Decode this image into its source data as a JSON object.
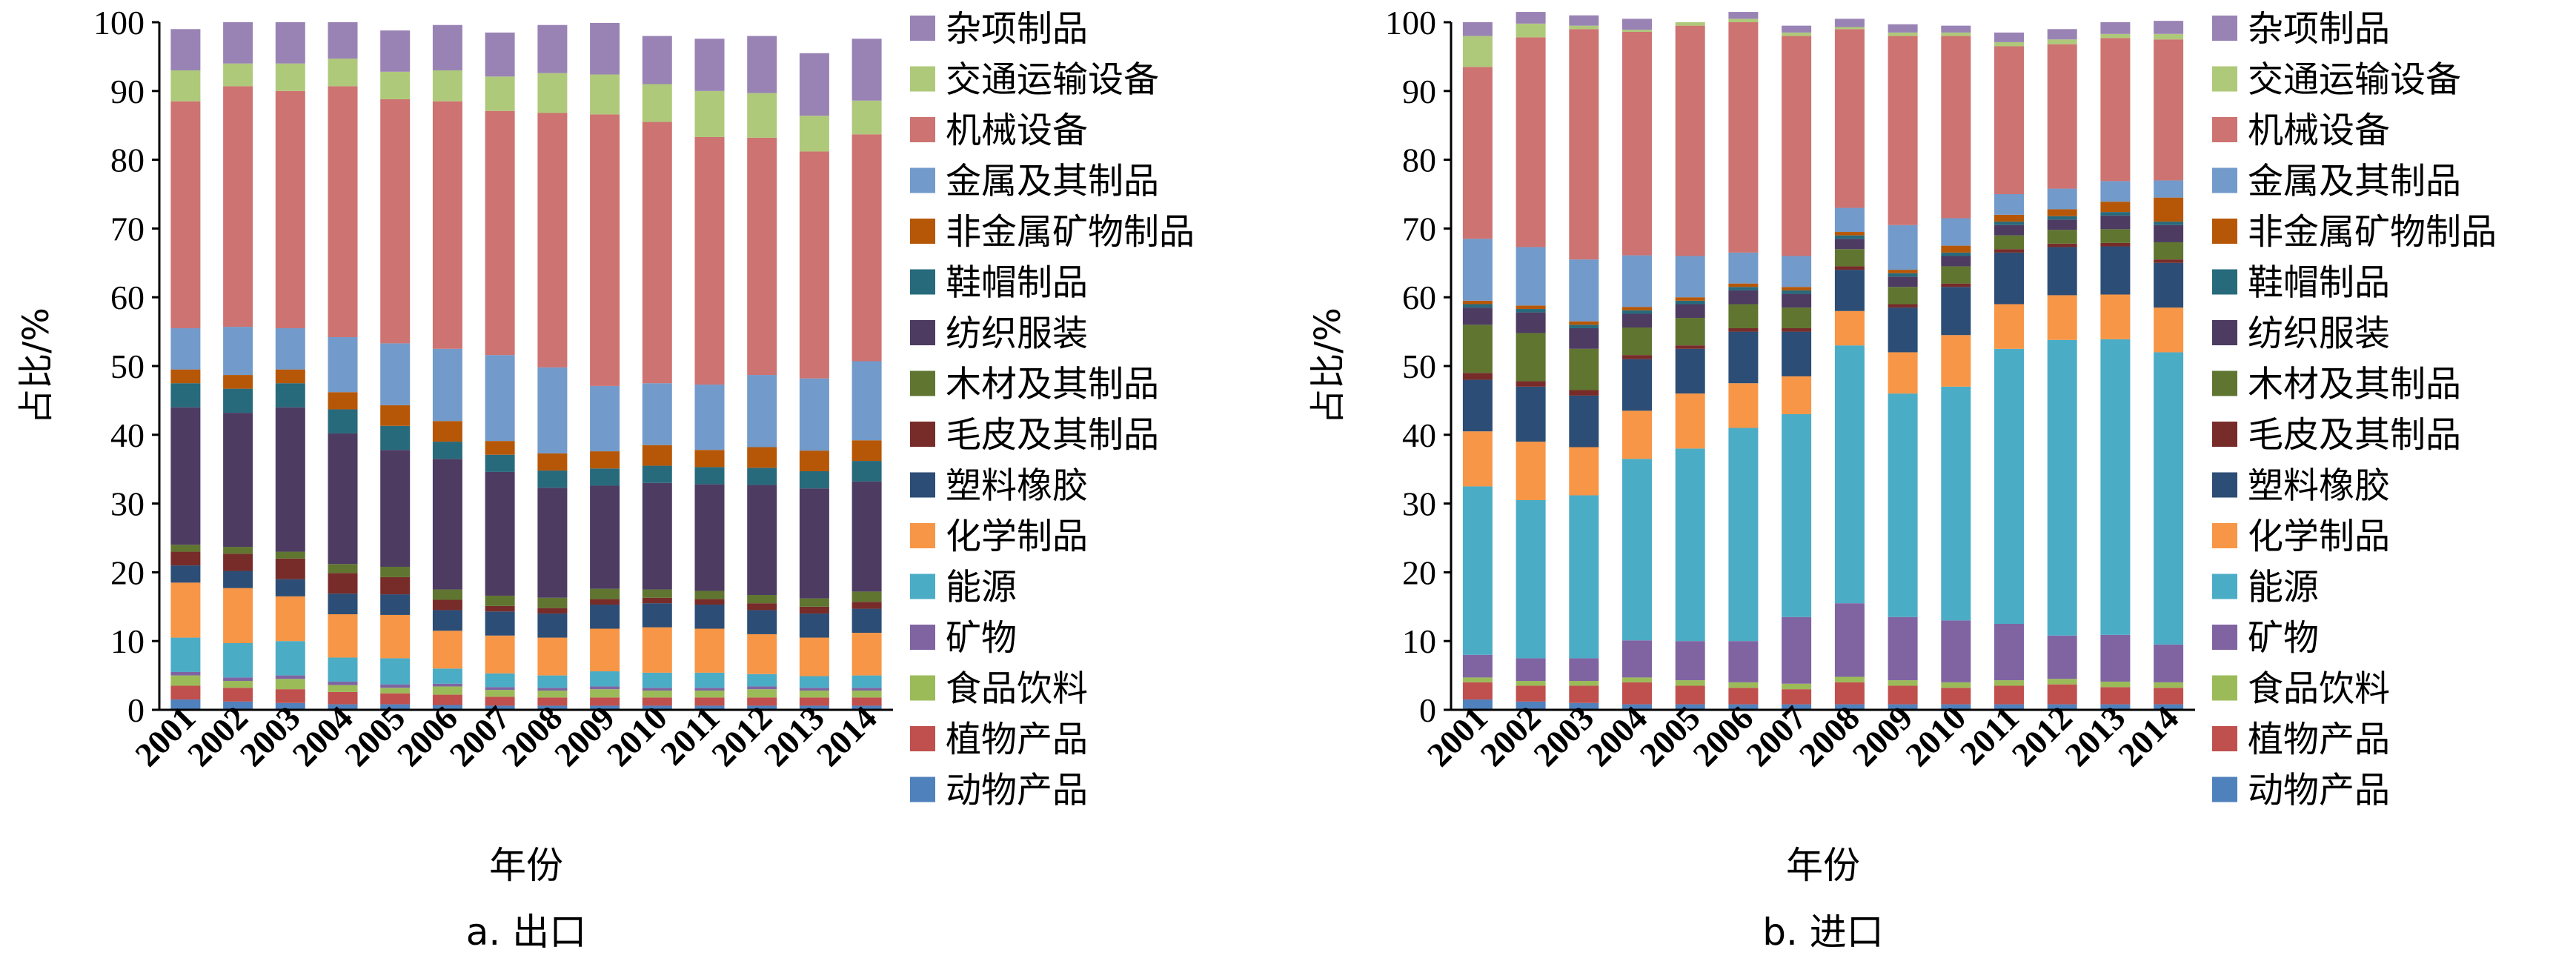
{
  "figure": {
    "colors": {
      "动物产品": "#4F81BD",
      "植物产品": "#C0504D",
      "食品饮料": "#9BBB59",
      "矿物": "#8064A2",
      "能源": "#4BACC6",
      "化学制品": "#F79646",
      "塑料橡胶": "#2C4D75",
      "毛皮及其制品": "#772C2A",
      "木材及其制品": "#5F7530",
      "纺织服装": "#4D3B62",
      "鞋帽制品": "#276A7C",
      "非金属矿物制品": "#B65708",
      "金属及其制品": "#729ACA",
      "机械设备": "#CD7371",
      "交通运输设备": "#AFC97A",
      "杂项制品": "#9983B5"
    }
  },
  "chart_data": [
    {
      "type": "bar",
      "stacked": true,
      "title": "",
      "caption": "a. 出口",
      "xlabel": "年份",
      "ylabel": "占比/%",
      "ylim": [
        0,
        100
      ],
      "yticks": [
        0,
        10,
        20,
        30,
        40,
        50,
        60,
        70,
        80,
        90,
        100
      ],
      "grid": false,
      "legend_position": "right",
      "categories": [
        "2001",
        "2002",
        "2003",
        "2004",
        "2005",
        "2006",
        "2007",
        "2008",
        "2009",
        "2010",
        "2011",
        "2012",
        "2013",
        "2014"
      ],
      "series": [
        {
          "name": "动物产品",
          "values": [
            1.5,
            1.2,
            1.0,
            0.8,
            0.8,
            0.7,
            0.6,
            0.6,
            0.6,
            0.6,
            0.6,
            0.6,
            0.6,
            0.6
          ]
        },
        {
          "name": "植物产品",
          "values": [
            2.0,
            2.0,
            2.0,
            1.8,
            1.6,
            1.5,
            1.3,
            1.2,
            1.2,
            1.2,
            1.2,
            1.2,
            1.2,
            1.2
          ]
        },
        {
          "name": "食品饮料",
          "values": [
            1.5,
            1.0,
            1.5,
            1.0,
            0.8,
            1.2,
            1.0,
            1.0,
            1.2,
            1.0,
            1.0,
            1.2,
            1.0,
            1.0
          ]
        },
        {
          "name": "矿物",
          "values": [
            0.5,
            0.5,
            0.5,
            0.5,
            0.5,
            0.4,
            0.4,
            0.4,
            0.4,
            0.4,
            0.4,
            0.4,
            0.4,
            0.4
          ]
        },
        {
          "name": "能源",
          "values": [
            5.0,
            5.0,
            5.0,
            3.5,
            3.8,
            2.2,
            2.0,
            1.8,
            2.2,
            2.2,
            2.2,
            1.8,
            1.7,
            1.8
          ]
        },
        {
          "name": "化学制品",
          "values": [
            8.0,
            8.0,
            6.5,
            6.3,
            6.3,
            5.5,
            5.5,
            5.5,
            6.2,
            6.6,
            6.4,
            5.8,
            5.6,
            6.2
          ]
        },
        {
          "name": "塑料橡胶",
          "values": [
            2.5,
            2.5,
            2.5,
            3.0,
            3.0,
            3.0,
            3.5,
            3.5,
            3.5,
            3.5,
            3.5,
            3.5,
            3.5,
            3.5
          ]
        },
        {
          "name": "毛皮及其制品",
          "values": [
            2.0,
            2.5,
            3.0,
            3.0,
            2.5,
            1.5,
            0.8,
            0.8,
            0.8,
            0.8,
            0.8,
            1.0,
            1.0,
            1.0
          ]
        },
        {
          "name": "木材及其制品",
          "values": [
            1.0,
            1.0,
            1.0,
            1.3,
            1.5,
            1.5,
            1.5,
            1.5,
            1.5,
            1.2,
            1.2,
            1.2,
            1.2,
            1.5
          ]
        },
        {
          "name": "纺织服装",
          "values": [
            20.0,
            19.5,
            21.0,
            19.0,
            17.0,
            19.0,
            18.0,
            16.0,
            15.0,
            15.5,
            15.5,
            16.0,
            16.0,
            16.0
          ]
        },
        {
          "name": "鞋帽制品",
          "values": [
            3.5,
            3.5,
            3.5,
            3.5,
            3.5,
            2.5,
            2.5,
            2.5,
            2.5,
            2.5,
            2.5,
            2.5,
            2.5,
            3.0
          ]
        },
        {
          "name": "非金属矿物制品",
          "values": [
            2.0,
            2.0,
            2.0,
            2.5,
            3.0,
            3.0,
            2.0,
            2.5,
            2.5,
            3.0,
            2.5,
            3.0,
            3.0,
            3.0
          ]
        },
        {
          "name": "金属及其制品",
          "values": [
            6.0,
            7.0,
            6.0,
            8.0,
            9.0,
            10.5,
            12.5,
            12.5,
            9.5,
            9.0,
            9.5,
            10.5,
            10.5,
            11.5
          ]
        },
        {
          "name": "机械设备",
          "values": [
            33.0,
            35.0,
            34.5,
            36.5,
            35.5,
            36.0,
            35.5,
            37.0,
            39.5,
            38.0,
            36.0,
            34.5,
            33.0,
            33.0
          ]
        },
        {
          "name": "交通运输设备",
          "values": [
            4.5,
            3.3,
            4.0,
            4.0,
            4.0,
            4.5,
            5.0,
            5.8,
            5.8,
            5.5,
            6.7,
            6.5,
            5.2,
            4.9
          ]
        },
        {
          "name": "杂项制品",
          "values": [
            6.0,
            6.0,
            6.0,
            5.3,
            6.0,
            6.6,
            6.4,
            7.0,
            7.5,
            7.0,
            7.6,
            8.3,
            9.1,
            9.0
          ]
        }
      ]
    },
    {
      "type": "bar",
      "stacked": true,
      "title": "",
      "caption": "b. 进口",
      "xlabel": "年份",
      "ylabel": "占比/%",
      "ylim": [
        0,
        100
      ],
      "yticks": [
        0,
        10,
        20,
        30,
        40,
        50,
        60,
        70,
        80,
        90,
        100
      ],
      "grid": false,
      "legend_position": "right",
      "categories": [
        "2001",
        "2002",
        "2003",
        "2004",
        "2005",
        "2006",
        "2007",
        "2008",
        "2009",
        "2010",
        "2011",
        "2012",
        "2013",
        "2014"
      ],
      "series": [
        {
          "name": "动物产品",
          "values": [
            1.5,
            1.2,
            1.0,
            0.8,
            0.8,
            0.8,
            0.8,
            0.8,
            0.8,
            0.8,
            0.8,
            0.8,
            0.8,
            0.8
          ]
        },
        {
          "name": "植物产品",
          "values": [
            2.5,
            2.3,
            2.5,
            3.2,
            2.7,
            2.4,
            2.2,
            3.2,
            2.7,
            2.4,
            2.7,
            2.9,
            2.5,
            2.4
          ]
        },
        {
          "name": "食品饮料",
          "values": [
            0.7,
            0.7,
            0.7,
            0.7,
            0.8,
            0.8,
            0.8,
            0.8,
            0.8,
            0.8,
            0.8,
            0.8,
            0.8,
            0.8
          ]
        },
        {
          "name": "矿物",
          "values": [
            3.3,
            3.3,
            3.3,
            5.4,
            5.7,
            6.0,
            9.7,
            10.7,
            9.2,
            9.0,
            8.2,
            6.3,
            6.8,
            5.5
          ]
        },
        {
          "name": "能源",
          "values": [
            24.5,
            23.0,
            23.7,
            26.4,
            28.0,
            31.0,
            29.5,
            37.5,
            32.5,
            34.0,
            40.0,
            43.0,
            43.0,
            42.5
          ]
        },
        {
          "name": "化学制品",
          "values": [
            8.0,
            8.5,
            7.0,
            7.0,
            8.0,
            6.5,
            5.5,
            5.0,
            6.0,
            7.5,
            6.5,
            6.5,
            6.5,
            6.5
          ]
        },
        {
          "name": "塑料橡胶",
          "values": [
            7.5,
            8.0,
            7.5,
            7.5,
            6.5,
            7.5,
            6.5,
            6.0,
            6.5,
            7.0,
            7.5,
            7.0,
            7.0,
            6.5
          ]
        },
        {
          "name": "毛皮及其制品",
          "values": [
            1.0,
            0.8,
            0.8,
            0.6,
            0.5,
            0.5,
            0.5,
            0.5,
            0.5,
            0.5,
            0.5,
            0.5,
            0.5,
            0.5
          ]
        },
        {
          "name": "木材及其制品",
          "values": [
            7.0,
            7.0,
            6.0,
            4.0,
            4.0,
            3.5,
            3.0,
            2.5,
            2.5,
            2.5,
            2.0,
            2.0,
            2.0,
            2.5
          ]
        },
        {
          "name": "纺织服装",
          "values": [
            2.5,
            3.0,
            3.0,
            2.0,
            2.0,
            2.0,
            2.0,
            1.5,
            1.5,
            1.5,
            1.5,
            1.5,
            2.0,
            2.5
          ]
        },
        {
          "name": "鞋帽制品",
          "values": [
            0.5,
            0.5,
            0.5,
            0.5,
            0.5,
            0.5,
            0.5,
            0.5,
            0.5,
            0.5,
            0.5,
            0.5,
            0.5,
            0.5
          ]
        },
        {
          "name": "非金属矿物制品",
          "values": [
            0.5,
            0.5,
            0.5,
            0.5,
            0.5,
            0.5,
            0.5,
            0.5,
            0.5,
            1.0,
            1.0,
            1.0,
            1.5,
            3.5
          ]
        },
        {
          "name": "金属及其制品",
          "values": [
            9.0,
            8.5,
            9.0,
            7.5,
            6.0,
            4.5,
            4.5,
            3.5,
            6.5,
            4.0,
            3.0,
            3.0,
            3.0,
            2.5
          ]
        },
        {
          "name": "机械设备",
          "values": [
            25.0,
            30.5,
            33.5,
            32.5,
            33.5,
            33.5,
            32.0,
            26.0,
            27.5,
            26.5,
            21.5,
            21.0,
            20.8,
            20.5
          ]
        },
        {
          "name": "交通运输设备",
          "values": [
            4.5,
            2.0,
            0.5,
            0.3,
            0.5,
            0.5,
            0.5,
            0.3,
            0.5,
            0.5,
            0.6,
            0.7,
            0.6,
            0.8
          ]
        },
        {
          "name": "杂项制品",
          "values": [
            2.0,
            1.7,
            1.5,
            1.6,
            0.0,
            1.0,
            1.0,
            1.2,
            1.2,
            1.0,
            1.4,
            1.5,
            1.7,
            1.9
          ]
        }
      ]
    }
  ]
}
